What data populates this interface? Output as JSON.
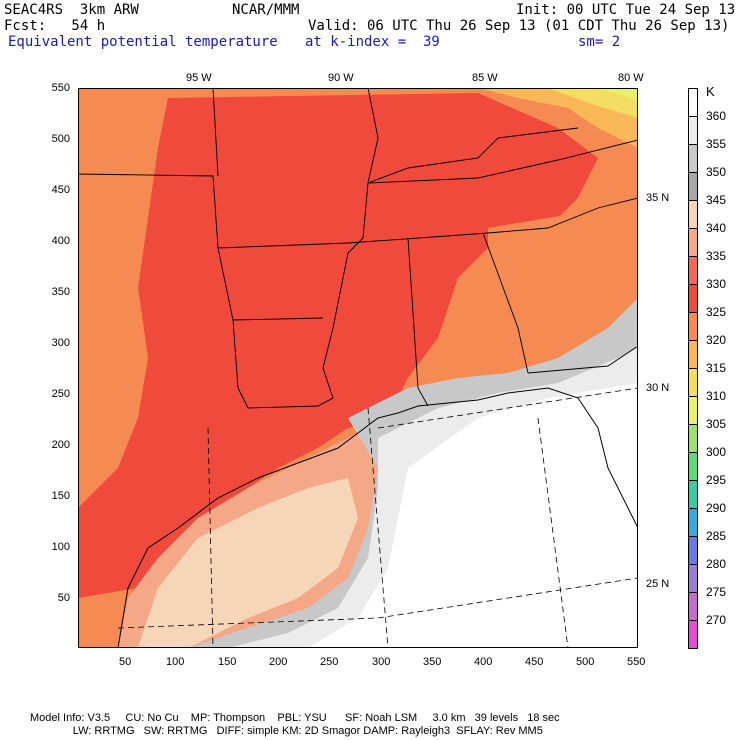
{
  "header": {
    "line1_left": "SEAC4RS  3km ARW",
    "line1_mid": "NCAR/MMM",
    "line1_right": "Init: 00 UTC Tue 24 Sep 13",
    "line2_left": "Fcst:   54 h",
    "line2_right": "Valid: 06 UTC Thu 26 Sep 13 (01 CDT Thu 26 Sep 13)",
    "line3_field": "Equivalent potential temperature",
    "line3_level": "at k-index =  39",
    "line3_smooth": "sm= 2"
  },
  "axes": {
    "top_lon_labels": [
      "95 W",
      "90 W",
      "85 W",
      "80 W"
    ],
    "x_ticks": [
      "50",
      "100",
      "150",
      "200",
      "250",
      "300",
      "350",
      "400",
      "450",
      "500",
      "550"
    ],
    "y_ticks": [
      "550",
      "500",
      "450",
      "400",
      "350",
      "300",
      "250",
      "200",
      "150",
      "100",
      "50"
    ],
    "right_lat_labels": [
      "35 N",
      "30 N",
      "25 N"
    ]
  },
  "legend": {
    "unit": "K",
    "levels": [
      "360",
      "355",
      "350",
      "345",
      "340",
      "335",
      "330",
      "325",
      "320",
      "315",
      "310",
      "305",
      "300",
      "295",
      "290",
      "285",
      "280",
      "275",
      "270"
    ],
    "colors": [
      "#ffffff",
      "#ececec",
      "#c8c8c8",
      "#a8a8a8",
      "#f6d6b8",
      "#f5a888",
      "#f26b58",
      "#ef4a3c",
      "#f58a52",
      "#f8b858",
      "#f3dd62",
      "#e8f070",
      "#a0e070",
      "#5ed878",
      "#3ec8a0",
      "#3aa8d8",
      "#6a7ae0",
      "#9a80d0",
      "#c070c8",
      "#e050d0"
    ]
  },
  "footer": {
    "line1": "Model Info: V3.5     CU: No Cu    MP: Thompson    PBL: YSU      SF: Noah LSM     3.0 km   39 levels   18 sec",
    "line2": "              LW: RRTMG   SW: RRTMG   DIFF: simple KM: 2D Smagor DAMP: Rayleigh3  SFLAY: Rev MM5"
  }
}
